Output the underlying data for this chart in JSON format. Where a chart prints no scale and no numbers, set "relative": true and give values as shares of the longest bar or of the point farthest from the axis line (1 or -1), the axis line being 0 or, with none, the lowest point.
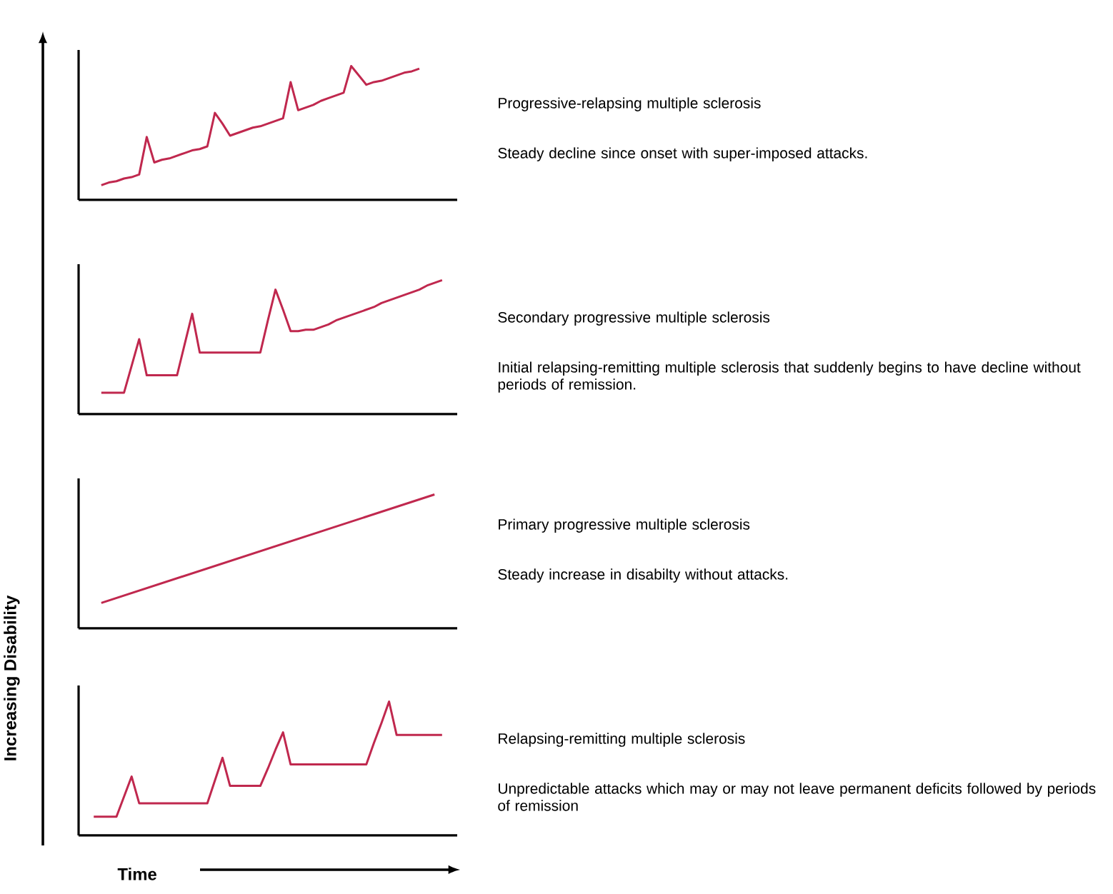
{
  "chart_data": [
    {
      "type": "line",
      "relative": true,
      "annotations": [
        "Progressive-relapsing multiple sclerosis",
        "Steady decline since onset with super-imposed attacks."
      ],
      "tick_labels": false,
      "marker": "none",
      "categories": [
        null,
        null,
        null,
        null,
        null,
        null,
        null,
        null,
        null,
        null,
        null,
        null,
        null,
        null,
        null,
        null,
        null,
        null,
        null,
        null,
        null,
        null,
        null,
        null,
        null,
        null,
        null,
        null,
        null,
        null,
        null,
        null,
        null,
        null,
        null,
        null,
        null,
        null,
        null,
        null,
        null,
        null,
        null
      ],
      "series": [
        {
          "color": "#c0284e",
          "values": [
            0.11,
            0.13,
            0.14,
            0.16,
            0.17,
            0.19,
            0.47,
            0.28,
            0.3,
            0.31,
            0.33,
            0.35,
            0.37,
            0.38,
            0.4,
            0.65,
            0.57,
            0.48,
            0.5,
            0.52,
            0.54,
            0.55,
            0.57,
            0.59,
            0.61,
            0.88,
            0.67,
            0.69,
            0.71,
            0.74,
            0.76,
            0.78,
            0.8,
            1,
            0.93,
            0.86,
            0.88,
            0.89,
            0.91,
            0.93,
            0.95,
            0.96,
            0.98
          ]
        }
      ]
    },
    {
      "type": "line",
      "relative": true,
      "annotations": [
        "Secondary progressive multiple sclerosis",
        "Initial relapsing-remitting multiple sclerosis  that suddenly begins to have decline without periods of remission."
      ],
      "tick_labels": false,
      "marker": "none",
      "categories": [
        null,
        null,
        null,
        null,
        null,
        null,
        null,
        null,
        null,
        null,
        null,
        null,
        null,
        null,
        null,
        null,
        null,
        null,
        null,
        null,
        null,
        null,
        null,
        null,
        null,
        null,
        null,
        null,
        null,
        null,
        null,
        null,
        null,
        null,
        null,
        null,
        null,
        null,
        null,
        null,
        null,
        null,
        null,
        null,
        null,
        null
      ],
      "series": [
        {
          "color": "#c0284e",
          "values": [
            0.16,
            0.16,
            0.16,
            0.16,
            0.36,
            0.56,
            0.29,
            0.29,
            0.29,
            0.29,
            0.29,
            0.52,
            0.75,
            0.46,
            0.46,
            0.46,
            0.46,
            0.46,
            0.46,
            0.46,
            0.46,
            0.46,
            0.7,
            0.93,
            0.78,
            0.62,
            0.62,
            0.63,
            0.63,
            0.65,
            0.67,
            0.7,
            0.72,
            0.74,
            0.76,
            0.78,
            0.8,
            0.83,
            0.85,
            0.87,
            0.89,
            0.91,
            0.93,
            0.96,
            0.98,
            1
          ]
        }
      ]
    },
    {
      "type": "line",
      "relative": true,
      "annotations": [
        "Primary progressive multiple sclerosis",
        "Steady increase in disabilty without attacks."
      ],
      "tick_labels": false,
      "marker": "none",
      "categories": [
        null,
        null
      ],
      "series": [
        {
          "color": "#c0284e",
          "values": [
            0.19,
            1
          ]
        }
      ]
    },
    {
      "type": "line",
      "relative": true,
      "annotations": [
        "Relapsing-remitting multiple sclerosis",
        "Unpredictable attacks which may or may not leave permanent deficits followed by periods of remission"
      ],
      "tick_labels": false,
      "marker": "none",
      "xlabel": "Time",
      "ylabel": "Increasing Disability",
      "categories": [
        null,
        null,
        null,
        null,
        null,
        null,
        null,
        null,
        null,
        null,
        null,
        null,
        null,
        null,
        null,
        null,
        null,
        null,
        null,
        null,
        null,
        null,
        null,
        null,
        null,
        null,
        null,
        null,
        null,
        null,
        null,
        null,
        null,
        null,
        null,
        null,
        null,
        null,
        null,
        null,
        null,
        null,
        null,
        null,
        null,
        null,
        null
      ],
      "series": [
        {
          "color": "#c0284e",
          "values": [
            0.14,
            0.14,
            0.14,
            0.14,
            0.29,
            0.44,
            0.24,
            0.24,
            0.24,
            0.24,
            0.24,
            0.24,
            0.24,
            0.24,
            0.24,
            0.24,
            0.41,
            0.58,
            0.37,
            0.37,
            0.37,
            0.37,
            0.37,
            0.5,
            0.64,
            0.77,
            0.53,
            0.53,
            0.53,
            0.53,
            0.53,
            0.53,
            0.53,
            0.53,
            0.53,
            0.53,
            0.53,
            0.69,
            0.84,
            1,
            0.75,
            0.75,
            0.75,
            0.75,
            0.75,
            0.75,
            0.75
          ]
        }
      ]
    }
  ]
}
